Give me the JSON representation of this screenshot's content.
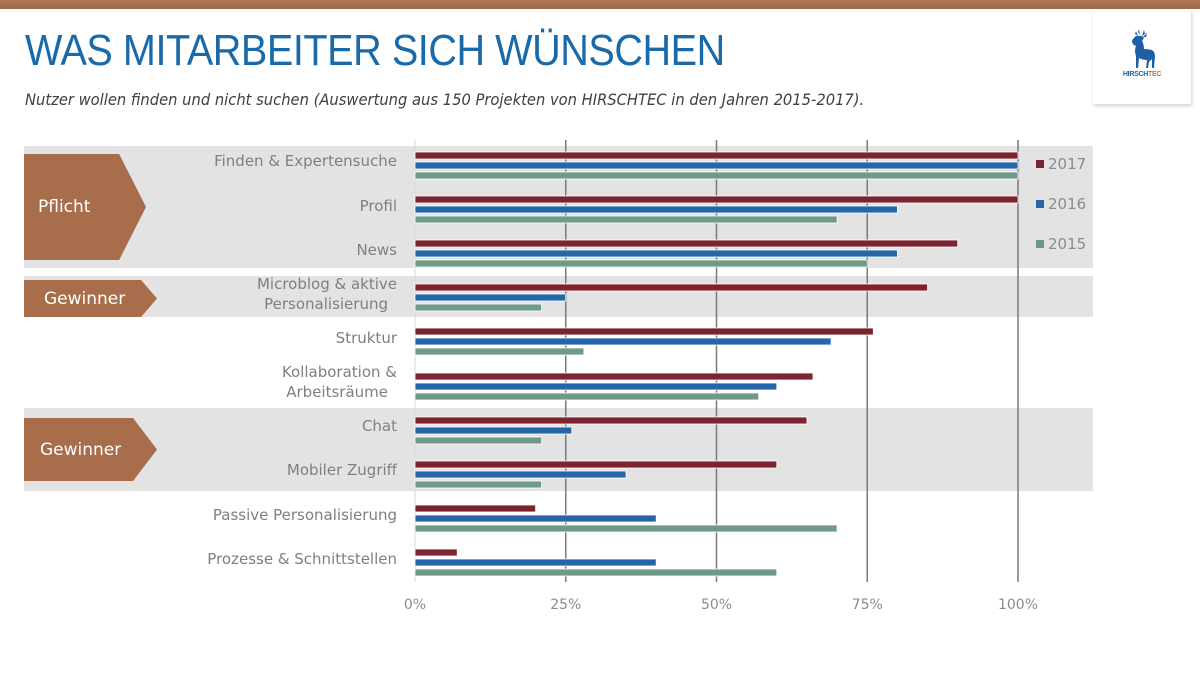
{
  "header": {
    "title": "WAS MITARBEITER SICH WÜNSCHEN",
    "subtitle": "Nutzer wollen finden und nicht suchen (Auswertung aus 150 Projekten von HIRSCHTEC in den Jahren 2015-2017).",
    "logo": {
      "icon": "deer-icon",
      "text_main": "HIRSCH",
      "text_accent": "TEC"
    }
  },
  "colors": {
    "s2017": "#7b2430",
    "s2016": "#2466a8",
    "s2015": "#6e9a88",
    "band": "#e3e3e3",
    "tag": "#a86e4c",
    "accent_title": "#1a6aaa"
  },
  "groups": [
    {
      "label": "Pflicht",
      "categories": [
        "Finden & Expertensuche",
        "Profil",
        "News"
      ]
    },
    {
      "label": "Gewinner",
      "categories": [
        "Microblog & aktive Personalisierung"
      ]
    },
    {
      "label": "Gewinner",
      "categories": [
        "Chat",
        "Mobiler Zugriff"
      ]
    }
  ],
  "labels": {
    "c0": "Finden & Expertensuche",
    "c1": "Profil",
    "c2": "News",
    "c3a": "Microblog & aktive",
    "c3b": "Personalisierung",
    "c4": "Struktur",
    "c5a": "Kollaboration &",
    "c5b": "Arbeitsräume",
    "c6": "Chat",
    "c7": "Mobiler Zugriff",
    "c8": "Passive Personalisierung",
    "c9": "Prozesse & Schnittstellen"
  },
  "chart_data": {
    "type": "bar",
    "orientation": "horizontal",
    "title": "WAS MITARBEITER SICH WÜNSCHEN",
    "xlabel": "",
    "ylabel": "",
    "xlim": [
      0,
      100
    ],
    "x_ticks": [
      "0%",
      "25%",
      "50%",
      "75%",
      "100%"
    ],
    "grid": true,
    "legend_position": "right",
    "categories": [
      "Finden & Expertensuche",
      "Profil",
      "News",
      "Microblog & aktive Personalisierung",
      "Struktur",
      "Kollaboration & Arbeitsräume",
      "Chat",
      "Mobiler Zugriff",
      "Passive Personalisierung",
      "Prozesse & Schnittstellen"
    ],
    "series": [
      {
        "name": "2017",
        "values": [
          100,
          100,
          90,
          85,
          76,
          66,
          65,
          60,
          20,
          7
        ]
      },
      {
        "name": "2016",
        "values": [
          100,
          80,
          80,
          25,
          69,
          60,
          26,
          35,
          40,
          40
        ]
      },
      {
        "name": "2015",
        "values": [
          100,
          70,
          75,
          21,
          28,
          57,
          21,
          21,
          70,
          60
        ]
      }
    ]
  }
}
